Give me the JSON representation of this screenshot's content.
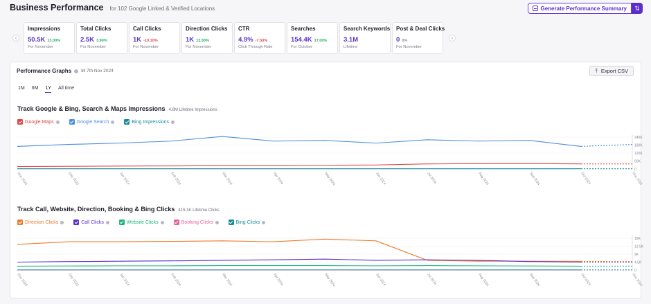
{
  "header": {
    "title": "Business Performance",
    "subtitle": "for 102 Google Linked & Verified Locations",
    "generate_label": "Generate Performance Summary",
    "menu_icon": "chevron-up-down-icon"
  },
  "kpis": [
    {
      "label": "Impressions",
      "value": "50.5K",
      "change": "13.00%",
      "direction": "up",
      "note": "For November"
    },
    {
      "label": "Total Clicks",
      "value": "2.5K",
      "change": "3.90%",
      "direction": "up",
      "note": "For November"
    },
    {
      "label": "Call Clicks",
      "value": "1K",
      "change": "-10.10%",
      "direction": "down",
      "note": "For November"
    },
    {
      "label": "Direction Clicks",
      "value": "1K",
      "change": "12.30%",
      "direction": "up",
      "note": "For November"
    },
    {
      "label": "CTR",
      "value": "4.9%",
      "change": "-7.50%",
      "direction": "down",
      "note": "Click Through Rate"
    },
    {
      "label": "Searches",
      "value": "154.4K",
      "change": "17.00%",
      "direction": "up",
      "note": "For October"
    },
    {
      "label": "Search Keywords",
      "value": "3.1M",
      "change": "",
      "direction": "neutral",
      "note": "Lifetime"
    },
    {
      "label": "Post & Deal Clicks",
      "value": "0",
      "change": "0%",
      "direction": "neutral",
      "note": "For November"
    }
  ],
  "panel": {
    "title": "Performance Graphs",
    "date_note": "till 7th Nov 2024",
    "export_label": "Export CSV",
    "tabs": [
      "1M",
      "6M",
      "1Y",
      "All time"
    ],
    "active_tab": "1Y"
  },
  "colors": {
    "accent": "#5b2ec9",
    "google_maps": "#e04646",
    "google_search": "#4a8fdf",
    "bing_impressions": "#1a8a9a",
    "direction": "#f07a2a",
    "call": "#5b2ec9",
    "website": "#1db47a",
    "booking": "#e8609a",
    "bing_clicks": "#1a8a9a"
  },
  "chart_data": [
    {
      "type": "line",
      "title": "Track Google & Bing, Search & Maps Impressions",
      "subtitle": "4.8M Lifetime Impressions",
      "x": [
        "Nov 2023",
        "Dec 2023",
        "Jan 2024",
        "Feb 2024",
        "Mar 2024",
        "Apr 2024",
        "May 2024",
        "Jun 2024",
        "Jul 2024",
        "Aug 2024",
        "Sep 2024",
        "Oct 2024",
        "Nov 2024"
      ],
      "yticks": [
        "240K",
        "180K",
        "120K",
        "60K",
        "0"
      ],
      "ylim": [
        0,
        240000
      ],
      "series": [
        {
          "name": "Google Maps",
          "color": "#e04646",
          "values": [
            18000,
            20000,
            22000,
            23000,
            26000,
            24000,
            28000,
            30000,
            38000,
            40000,
            41000,
            38000,
            38000
          ]
        },
        {
          "name": "Google Search",
          "color": "#4a8fdf",
          "values": [
            170000,
            185000,
            195000,
            210000,
            245000,
            210000,
            215000,
            195000,
            220000,
            210000,
            215000,
            170000,
            185000
          ]
        },
        {
          "name": "Bing Impressions",
          "color": "#1a8a9a",
          "values": [
            1500,
            1500,
            1500,
            1500,
            1500,
            1500,
            1500,
            1500,
            1500,
            1500,
            1500,
            1500,
            1500
          ]
        }
      ],
      "projected_last_segment": true
    },
    {
      "type": "line",
      "title": "Track Call, Website, Direction, Booking & Bing Clicks",
      "subtitle": "415.1K Lifetime Clicks",
      "x": [
        "Nov 2023",
        "Dec 2023",
        "Jan 2024",
        "Feb 2024",
        "Mar 2024",
        "Apr 2024",
        "May 2024",
        "Jun 2024",
        "Jul 2024",
        "Aug 2024",
        "Sep 2024",
        "Oct 2024",
        "Nov 2024"
      ],
      "yticks": [
        "18K",
        "13.5K",
        "9K",
        "4.5K",
        "0"
      ],
      "ylim": [
        0,
        18000
      ],
      "series": [
        {
          "name": "Direction Clicks",
          "color": "#f07a2a",
          "values": [
            14500,
            16000,
            16000,
            16200,
            16500,
            16000,
            17500,
            16500,
            5500,
            5000,
            5000,
            4900,
            4800
          ]
        },
        {
          "name": "Call Clicks",
          "color": "#5b2ec9",
          "values": [
            4500,
            4800,
            5000,
            5200,
            5500,
            5800,
            6200,
            5500,
            5800,
            5500,
            4800,
            4500,
            4500
          ]
        },
        {
          "name": "Website Clicks",
          "color": "#1db47a",
          "values": [
            2200,
            2300,
            2400,
            2400,
            2500,
            2500,
            2500,
            2400,
            2500,
            2400,
            2300,
            2200,
            2200
          ]
        },
        {
          "name": "Booking Clicks",
          "color": "#e8609a",
          "values": [
            50,
            50,
            50,
            50,
            50,
            50,
            50,
            50,
            50,
            50,
            50,
            50,
            50
          ]
        },
        {
          "name": "Bing Clicks",
          "color": "#1a8a9a",
          "values": [
            100,
            100,
            100,
            100,
            100,
            100,
            100,
            100,
            100,
            100,
            100,
            100,
            100
          ]
        }
      ],
      "projected_last_segment": true
    }
  ]
}
